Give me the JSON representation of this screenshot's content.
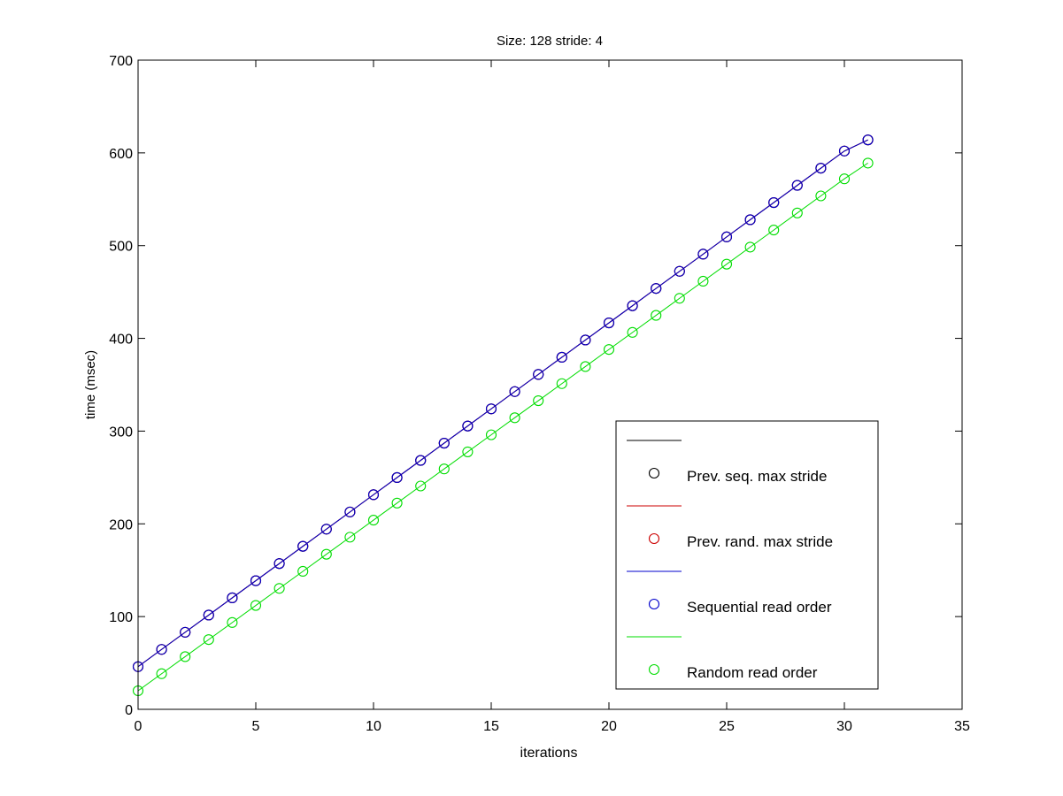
{
  "chart_data": {
    "type": "line",
    "title": "Size: 128 stride: 4",
    "xlabel": "iterations",
    "ylabel": "time (msec)",
    "xlim": [
      0,
      35
    ],
    "ylim": [
      0,
      700
    ],
    "xticks": [
      0,
      5,
      10,
      15,
      20,
      25,
      30,
      35
    ],
    "yticks": [
      0,
      100,
      200,
      300,
      400,
      500,
      600,
      700
    ],
    "grid": false,
    "legend_position": "bottom-right",
    "x": [
      0,
      1,
      2,
      3,
      4,
      5,
      6,
      7,
      8,
      9,
      10,
      11,
      12,
      13,
      14,
      15,
      16,
      17,
      18,
      19,
      20,
      21,
      22,
      23,
      24,
      25,
      26,
      27,
      28,
      29,
      30,
      31
    ],
    "series": [
      {
        "name": "Prev. seq. max stride",
        "color": "#000000",
        "values": [
          46,
          64.6,
          83.1,
          101.6,
          120.2,
          138.7,
          157.2,
          175.8,
          194.3,
          212.8,
          231.4,
          249.9,
          268.4,
          287,
          305.5,
          324,
          342.6,
          361.1,
          379.6,
          398.2,
          416.7,
          435.2,
          453.8,
          472.3,
          490.8,
          509.4,
          527.9,
          546.4,
          565,
          583.5,
          602,
          614
        ]
      },
      {
        "name": "Prev. rand. max stride",
        "color": "#cc0000",
        "values": [
          46,
          64.6,
          83.1,
          101.6,
          120.2,
          138.7,
          157.2,
          175.8,
          194.3,
          212.8,
          231.4,
          249.9,
          268.4,
          287,
          305.5,
          324,
          342.6,
          361.1,
          379.6,
          398.2,
          416.7,
          435.2,
          453.8,
          472.3,
          490.8,
          509.4,
          527.9,
          546.4,
          565,
          583.5,
          602,
          614
        ]
      },
      {
        "name": "Sequential read order",
        "color": "#0000cc",
        "values": [
          46,
          64.6,
          83.1,
          101.6,
          120.2,
          138.7,
          157.2,
          175.8,
          194.3,
          212.8,
          231.4,
          249.9,
          268.4,
          287,
          305.5,
          324,
          342.6,
          361.1,
          379.6,
          398.2,
          416.7,
          435.2,
          453.8,
          472.3,
          490.8,
          509.4,
          527.9,
          546.4,
          565,
          583.5,
          602,
          614
        ]
      },
      {
        "name": "Random read order",
        "color": "#00dd00",
        "values": [
          20,
          38.4,
          56.8,
          75.2,
          93.6,
          112,
          130.4,
          148.8,
          167.2,
          185.6,
          204,
          222.4,
          240.8,
          259.2,
          277.6,
          296,
          314.4,
          332.8,
          351.2,
          369.6,
          388,
          406.4,
          424.8,
          443.2,
          461.6,
          480,
          498.4,
          516.8,
          535.2,
          553.6,
          572,
          589
        ]
      }
    ]
  }
}
